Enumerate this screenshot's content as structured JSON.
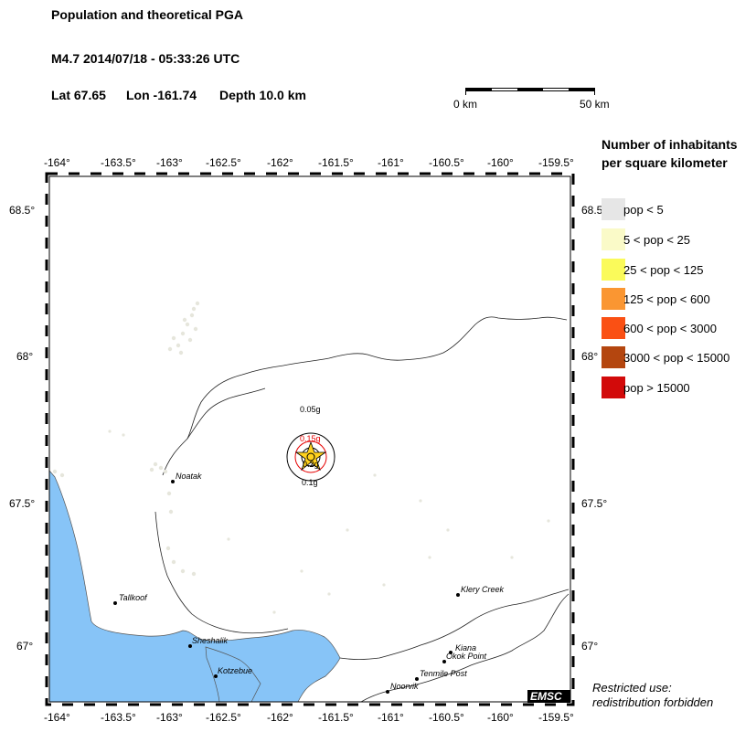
{
  "header": {
    "title": "Population and theoretical PGA",
    "event": "M4.7  2014/07/18 - 05:33:26 UTC",
    "lat": "Lat 67.65",
    "lon": "Lon -161.74",
    "depth": "Depth  10.0 km"
  },
  "scalebar": {
    "left_label": "0 km",
    "right_label": "50 km"
  },
  "axes": {
    "lon_ticks": [
      "-164°",
      "-163.5°",
      "-163°",
      "-162.5°",
      "-162°",
      "-161.5°",
      "-161°",
      "-160.5°",
      "-160°",
      "-159.5°"
    ],
    "lat_ticks": [
      "68.5°",
      "68°",
      "67.5°",
      "67°"
    ]
  },
  "legend": {
    "title_line1": "Number of inhabitants",
    "title_line2": "per square kilometer",
    "items": [
      {
        "label": "pop < 5",
        "color": "#e6e6e6"
      },
      {
        "label": "5 < pop < 25",
        "color": "#fafac8"
      },
      {
        "label": "25 < pop < 125",
        "color": "#fafa5a"
      },
      {
        "label": "125 < pop < 600",
        "color": "#fa9632"
      },
      {
        "label": "600 < pop < 3000",
        "color": "#fa5014"
      },
      {
        "label": "3000 < pop < 15000",
        "color": "#b4460f"
      },
      {
        "label": "pop > 15000",
        "color": "#d20a0a"
      }
    ]
  },
  "pga_labels": {
    "outer": "0.05g",
    "inner_red": "0.15g",
    "center": "0.2g",
    "lower": "0.1g"
  },
  "towns": [
    "Noatak",
    "Tallkoof",
    "Sheshalik",
    "Kotzebue",
    "Klery Creek",
    "Kiana",
    "Okok Point",
    "Tenmile Post",
    "Noorvik"
  ],
  "branding": "EMSC",
  "notice": {
    "line1": "Restricted use:",
    "line2": "redistribution forbidden"
  },
  "colors": {
    "water": "#87c4f7",
    "low_density": "#e6e6dc",
    "epicenter_star": "#ffd21e",
    "pga_red": "#e60000"
  }
}
